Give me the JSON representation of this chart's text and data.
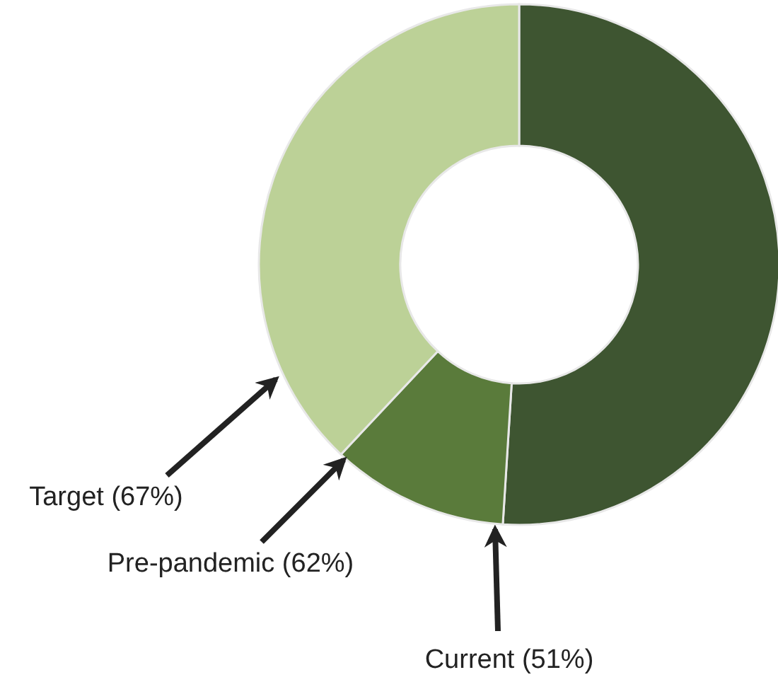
{
  "chart_data": {
    "type": "donut",
    "categories": [
      null,
      null,
      null
    ],
    "values": [
      51,
      11,
      38
    ],
    "colors": [
      "#3e5531",
      "#5a7b3b",
      "#bcd197"
    ],
    "annotations": [
      "Current (51%)",
      "Pre-pandemic (62%)",
      "Target (67%)"
    ]
  }
}
